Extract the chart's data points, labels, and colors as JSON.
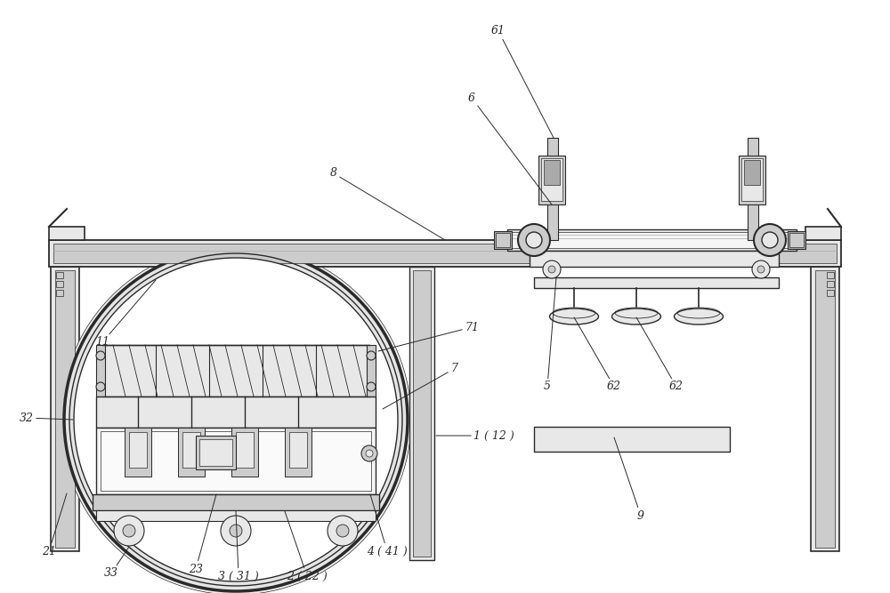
{
  "bg": "#ffffff",
  "lc": "#2a2a2a",
  "g1": "#e8e8e8",
  "g2": "#cccccc",
  "g3": "#aaaaaa",
  "g4": "#f5f5f5",
  "g5": "#bbbbbb"
}
